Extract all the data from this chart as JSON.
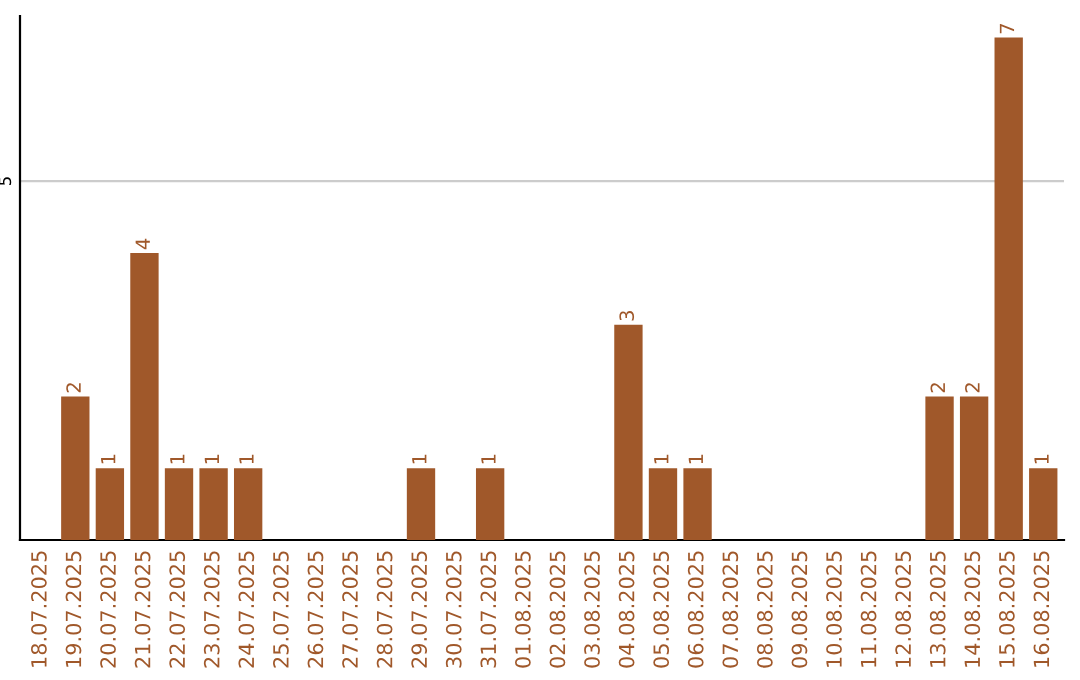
{
  "chart_data": {
    "type": "bar",
    "categories": [
      "18.07.2025",
      "19.07.2025",
      "20.07.2025",
      "21.07.2025",
      "22.07.2025",
      "23.07.2025",
      "24.07.2025",
      "25.07.2025",
      "26.07.2025",
      "27.07.2025",
      "28.07.2025",
      "29.07.2025",
      "30.07.2025",
      "31.07.2025",
      "01.08.2025",
      "02.08.2025",
      "03.08.2025",
      "04.08.2025",
      "05.08.2025",
      "06.08.2025",
      "07.08.2025",
      "08.08.2025",
      "09.08.2025",
      "10.08.2025",
      "11.08.2025",
      "12.08.2025",
      "13.08.2025",
      "14.08.2025",
      "15.08.2025",
      "16.08.2025"
    ],
    "values": [
      0,
      2,
      1,
      4,
      1,
      1,
      1,
      0,
      0,
      0,
      0,
      1,
      0,
      1,
      0,
      0,
      0,
      3,
      1,
      1,
      0,
      0,
      0,
      0,
      0,
      0,
      2,
      2,
      7,
      1
    ],
    "value_labels": [
      null,
      "2",
      "1",
      "4",
      "1",
      "1",
      "1",
      null,
      null,
      null,
      null,
      "1",
      null,
      "1",
      null,
      null,
      null,
      "3",
      "1",
      "1",
      null,
      null,
      null,
      null,
      null,
      null,
      "2",
      "2",
      "7",
      "1"
    ],
    "color": "#a0582a",
    "ylim": [
      0,
      7.3
    ],
    "yticks": [
      5
    ],
    "grid": "y",
    "legend": false
  }
}
